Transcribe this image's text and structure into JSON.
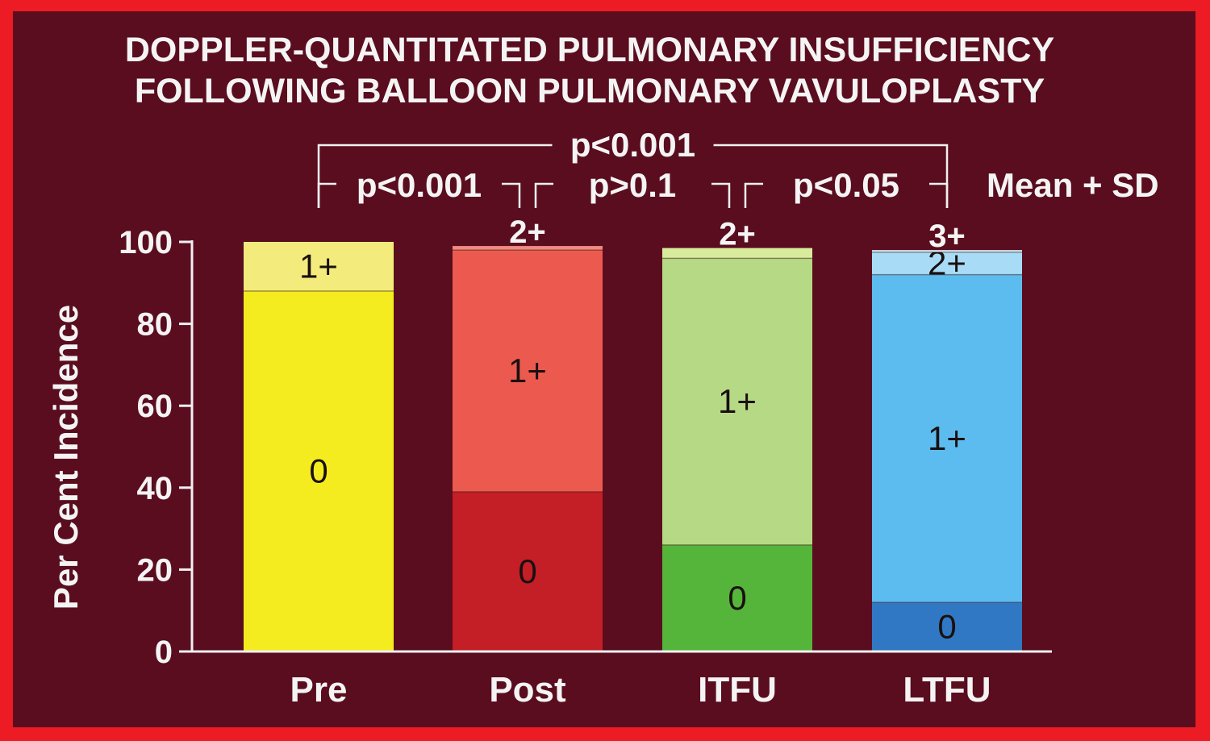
{
  "chart_data": {
    "type": "bar",
    "stacked": true,
    "title": [
      "DOPPLER-QUANTITATED PULMONARY INSUFFICIENCY",
      "FOLLOWING BALLOON PULMONARY VAVULOPLASTY"
    ],
    "ylabel": "Per Cent Incidence",
    "xlabel": "",
    "ylim": [
      0,
      100
    ],
    "yticks": [
      "0",
      "20",
      "40",
      "60",
      "80",
      "100"
    ],
    "categories": [
      "Pre",
      "Post",
      "ITFU",
      "LTFU"
    ],
    "annotation": "Mean + SD",
    "bars": [
      {
        "category": "Pre",
        "segments": [
          {
            "grade": "0",
            "value": 88,
            "color": "#f4ec1e",
            "label": "0"
          },
          {
            "grade": "1+",
            "value": 12,
            "color": "#f3ec7c",
            "label": "1+"
          }
        ],
        "top_label": ""
      },
      {
        "category": "Post",
        "segments": [
          {
            "grade": "0",
            "value": 39,
            "color": "#c41e26",
            "label": "0"
          },
          {
            "grade": "1+",
            "value": 59,
            "color": "#ec5a4f",
            "label": "1+"
          },
          {
            "grade": "2+",
            "value": 1,
            "color": "#f08a80",
            "label": ""
          }
        ],
        "top_label": "2+"
      },
      {
        "category": "ITFU",
        "segments": [
          {
            "grade": "0",
            "value": 26,
            "color": "#55b53a",
            "label": "0"
          },
          {
            "grade": "1+",
            "value": 70,
            "color": "#b6d985",
            "label": "1+"
          },
          {
            "grade": "2+",
            "value": 2.5,
            "color": "#d9ec9e",
            "label": ""
          }
        ],
        "top_label": "2+"
      },
      {
        "category": "LTFU",
        "segments": [
          {
            "grade": "0",
            "value": 12,
            "color": "#3178c4",
            "label": "0"
          },
          {
            "grade": "1+",
            "value": 80,
            "color": "#5cbcf0",
            "label": "1+"
          },
          {
            "grade": "2+",
            "value": 5.5,
            "color": "#a8dcf6",
            "label": "2+"
          },
          {
            "grade": "3+",
            "value": 0.5,
            "color": "#d6eef9",
            "label": ""
          }
        ],
        "top_label": "3+"
      }
    ],
    "comparisons": [
      {
        "from": "Pre",
        "to": "LTFU",
        "label": "p<0.001",
        "level": "upper"
      },
      {
        "from": "Pre",
        "to": "Post",
        "label": "p<0.001",
        "level": "lower"
      },
      {
        "from": "Post",
        "to": "ITFU",
        "label": "p>0.1",
        "level": "lower"
      },
      {
        "from": "ITFU",
        "to": "LTFU",
        "label": "p<0.05",
        "level": "lower"
      }
    ]
  }
}
